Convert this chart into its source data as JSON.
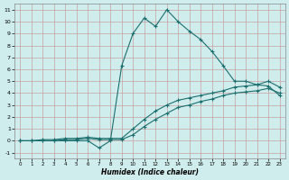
{
  "xlabel": "Humidex (Indice chaleur)",
  "xlim": [
    -0.5,
    23.5
  ],
  "ylim": [
    -1.5,
    11.5
  ],
  "xticks": [
    0,
    1,
    2,
    3,
    4,
    5,
    6,
    7,
    8,
    9,
    10,
    11,
    12,
    13,
    14,
    15,
    16,
    17,
    18,
    19,
    20,
    21,
    22,
    23
  ],
  "yticks": [
    -1,
    0,
    1,
    2,
    3,
    4,
    5,
    6,
    7,
    8,
    9,
    10,
    11
  ],
  "bg_color": "#d0eded",
  "line_color": "#1a6e6e",
  "grid_color": "#c0d8d8",
  "series1_x": [
    0,
    1,
    2,
    3,
    4,
    5,
    6,
    7,
    8,
    9,
    10,
    11,
    12,
    13,
    14,
    15,
    16,
    17,
    18,
    19,
    20,
    21,
    22,
    23
  ],
  "series1_y": [
    0,
    0,
    0,
    0,
    0,
    0,
    0,
    -0.6,
    0,
    6.3,
    9.0,
    10.3,
    9.6,
    11.0,
    10.0,
    9.2,
    8.5,
    7.5,
    6.3,
    5.0,
    5.0,
    4.7,
    4.6,
    3.8
  ],
  "series2_x": [
    0,
    1,
    2,
    3,
    4,
    5,
    6,
    7,
    8,
    9,
    10,
    11,
    12,
    13,
    14,
    15,
    16,
    17,
    18,
    19,
    20,
    21,
    22,
    23
  ],
  "series2_y": [
    0,
    0,
    0.1,
    0.1,
    0.2,
    0.2,
    0.3,
    0.2,
    0.2,
    0.2,
    1.0,
    1.8,
    2.5,
    3.0,
    3.4,
    3.6,
    3.8,
    4.0,
    4.2,
    4.5,
    4.6,
    4.7,
    5.0,
    4.5
  ],
  "series3_x": [
    0,
    1,
    2,
    3,
    4,
    5,
    6,
    7,
    8,
    9,
    10,
    11,
    12,
    13,
    14,
    15,
    16,
    17,
    18,
    19,
    20,
    21,
    22,
    23
  ],
  "series3_y": [
    0,
    0,
    0,
    0,
    0.1,
    0.1,
    0.2,
    0.1,
    0.1,
    0.1,
    0.5,
    1.2,
    1.8,
    2.3,
    2.8,
    3.0,
    3.3,
    3.5,
    3.8,
    4.0,
    4.1,
    4.2,
    4.4,
    4.0
  ]
}
